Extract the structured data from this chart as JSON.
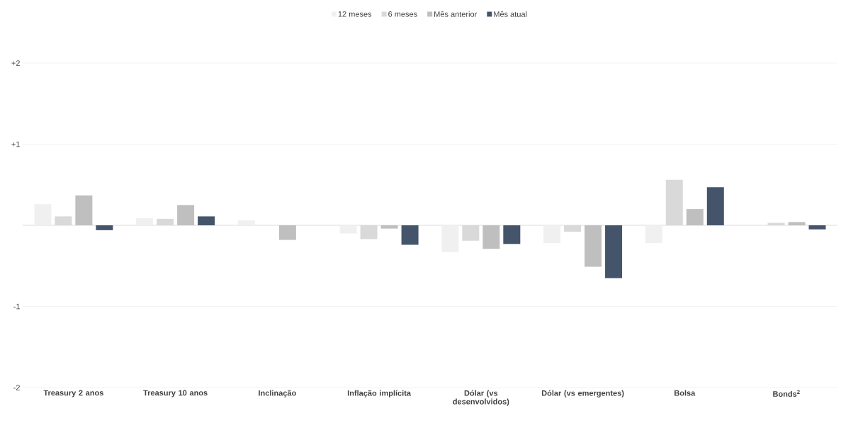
{
  "chart_data": {
    "type": "bar",
    "categories": [
      "Treasury 2 anos",
      "Treasury 10 anos",
      "Inclinação",
      "Inflação implícita",
      "Dólar (vs desenvolvidos)",
      "Dólar (vs emergentes)",
      "Bolsa",
      "Bonds$^{2}$"
    ],
    "series": [
      {
        "name": "12 meses",
        "color": "#f0f0f0",
        "values": [
          0.26,
          0.09,
          0.06,
          -0.1,
          -0.33,
          -0.22,
          -0.22,
          null
        ]
      },
      {
        "name": "6 meses",
        "color": "#d9d9d9",
        "values": [
          0.11,
          0.08,
          null,
          -0.17,
          -0.19,
          -0.08,
          0.56,
          0.03
        ]
      },
      {
        "name": "Mês anterior",
        "color": "#bfbfbf",
        "values": [
          0.37,
          0.25,
          -0.18,
          -0.04,
          -0.29,
          -0.51,
          0.2,
          0.04
        ]
      },
      {
        "name": "Mês atual",
        "color": "#44546a",
        "values": [
          -0.06,
          0.11,
          null,
          -0.24,
          -0.23,
          -0.65,
          0.47,
          -0.05
        ]
      }
    ],
    "ylim": [
      -2,
      2
    ],
    "yticks": [
      {
        "value": 2,
        "label": "+2"
      },
      {
        "value": 1,
        "label": "+1"
      },
      {
        "value": 0,
        "label": null
      },
      -1,
      -2
    ],
    "grid": "y",
    "legend": "top"
  }
}
